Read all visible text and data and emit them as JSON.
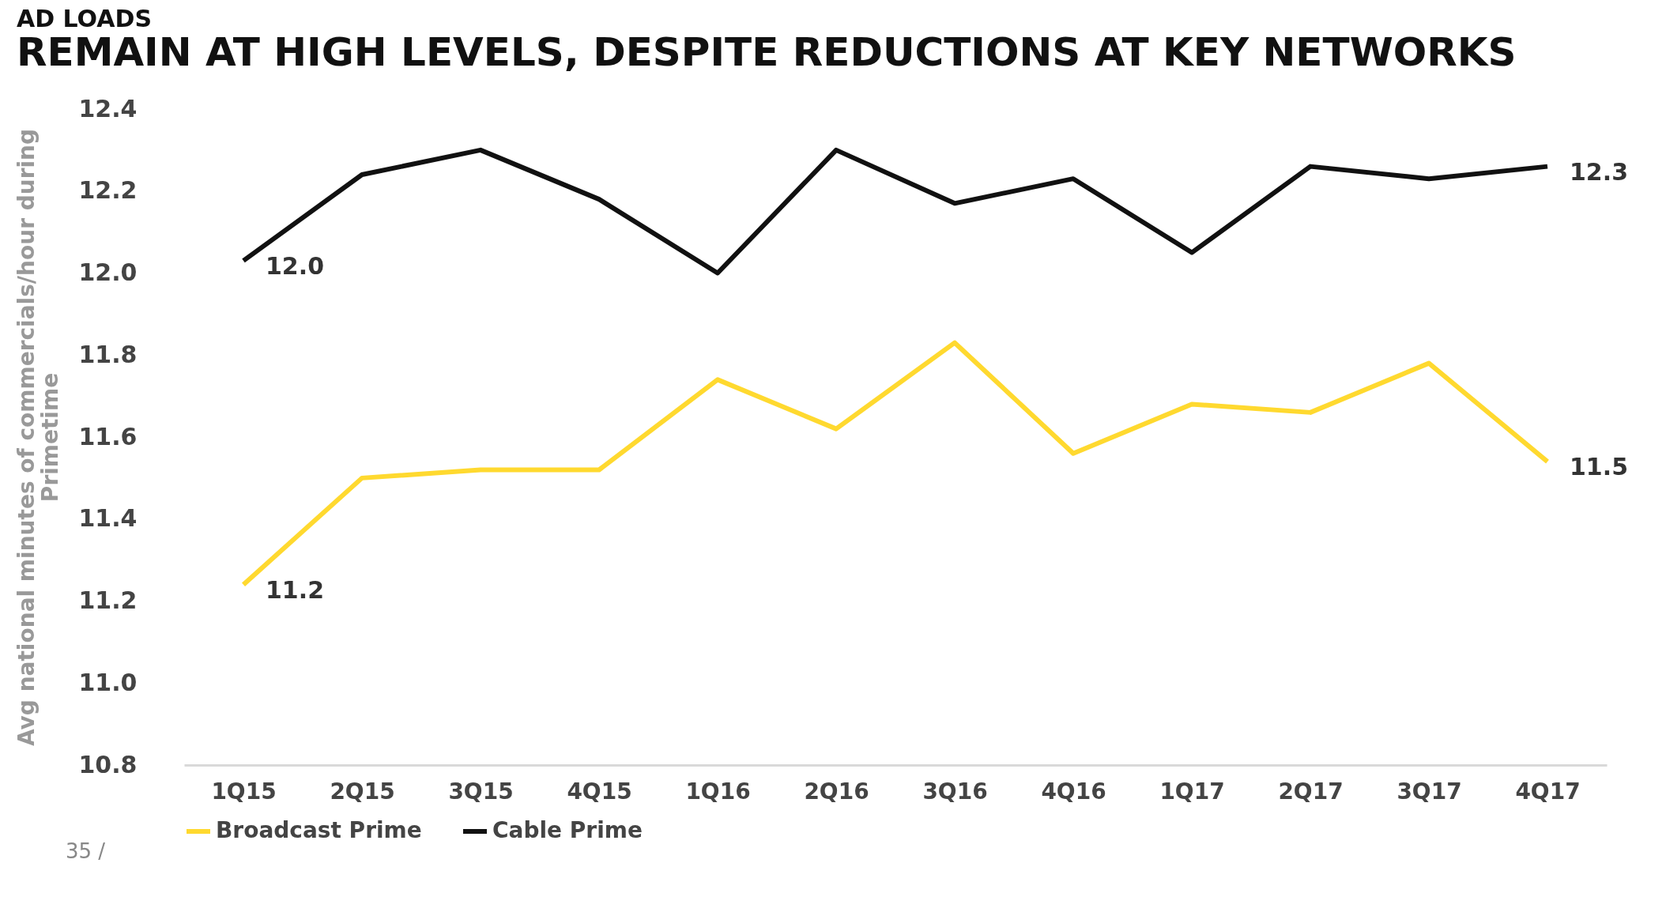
{
  "chart_data": {
    "type": "line",
    "title": "AD LOADS",
    "subtitle": "REMAIN AT HIGH LEVELS, DESPITE REDUCTIONS AT KEY NETWORKS",
    "ylabel": "Avg national minutes of commercials/hour during Primetime",
    "categories": [
      "1Q15",
      "2Q15",
      "3Q15",
      "4Q15",
      "1Q16",
      "2Q16",
      "3Q16",
      "4Q16",
      "1Q17",
      "2Q17",
      "3Q17",
      "4Q17"
    ],
    "series": [
      {
        "name": "Broadcast Prime",
        "color": "#ffd92f",
        "values": [
          11.24,
          11.5,
          11.52,
          11.52,
          11.74,
          11.62,
          11.83,
          11.56,
          11.68,
          11.66,
          11.78,
          11.54
        ],
        "value_labels": [
          "11.2",
          null,
          null,
          null,
          null,
          null,
          null,
          null,
          null,
          null,
          null,
          "11.5"
        ]
      },
      {
        "name": "Cable Prime",
        "color": "#111111",
        "values": [
          12.03,
          12.24,
          12.3,
          12.18,
          12.0,
          12.3,
          12.17,
          12.23,
          12.05,
          12.26,
          12.23,
          12.26
        ],
        "value_labels": [
          "12.0",
          null,
          null,
          null,
          null,
          null,
          null,
          null,
          null,
          null,
          null,
          "12.3"
        ]
      }
    ],
    "ylim": [
      10.8,
      12.4
    ],
    "yticks": [
      10.8,
      {
        "value": 11,
        "label": "11.0"
      },
      11.2,
      11.4,
      11.6,
      11.8,
      {
        "value": 12,
        "label": "12.0"
      },
      12.2,
      12.4
    ],
    "grid": false,
    "legend": "bottom",
    "line_style": "solid",
    "marker": "none",
    "annotations": [
      "35 /"
    ]
  }
}
